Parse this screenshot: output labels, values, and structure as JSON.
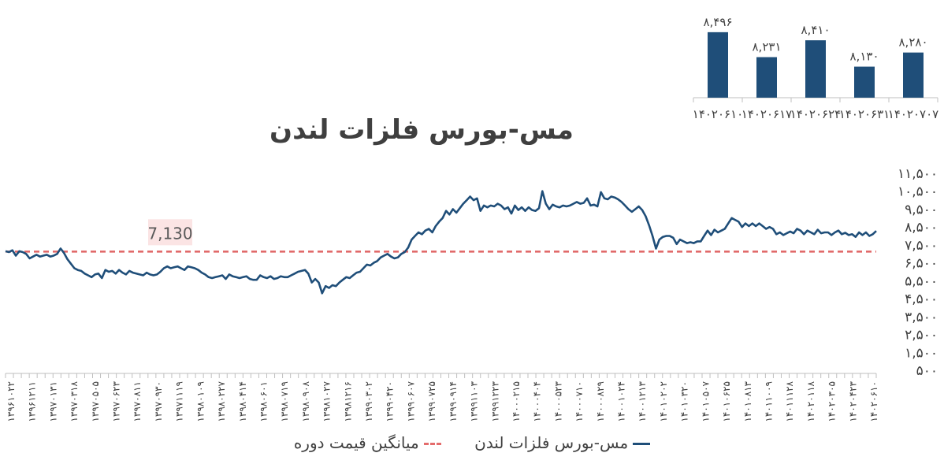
{
  "colors": {
    "series": "#1f4e79",
    "average": "#e06666",
    "avg_label_bg": "#fbe4e4",
    "bars": "#1f4e79",
    "axis": "#bfbfbf",
    "text": "#404040"
  },
  "chart_data": [
    {
      "type": "bar",
      "categories": [
        "۱۴۰۲۰۶۱۰",
        "۱۴۰۲۰۶۱۷",
        "۱۴۰۲۰۶۲۴",
        "۱۴۰۲۰۶۳۱",
        "۱۴۰۲۰۷۰۷"
      ],
      "values": [
        8496,
        8231,
        8410,
        8130,
        8280
      ],
      "value_labels": [
        "۸,۴۹۶",
        "۸,۲۳۱",
        "۸,۴۱۰",
        "۸,۱۳۰",
        "۸,۲۸۰"
      ],
      "ylim": [
        7800,
        8520
      ]
    },
    {
      "type": "line",
      "title": "مس-بورس فلزات لندن",
      "ylim": [
        500,
        11500
      ],
      "y_ticks": [
        "۵۰۰",
        "۱,۵۰۰",
        "۲,۵۰۰",
        "۳,۵۰۰",
        "۴,۵۰۰",
        "۵,۵۰۰",
        "۶,۵۰۰",
        "۷,۵۰۰",
        "۸,۵۰۰",
        "۹,۵۰۰",
        "۱۰,۵۰۰",
        "۱۱,۵۰۰"
      ],
      "x_ticks": [
        "۱۳۹۶۱۰۲۲",
        "۱۳۹۶۱۲۱۱",
        "۱۳۹۷۰۱۳۱",
        "۱۳۹۷۰۳۱۸",
        "۱۳۹۷۰۵۰۵",
        "۱۳۹۷۰۶۲۳",
        "۱۳۹۷۰۸۱۱",
        "۱۳۹۷۰۹۳۰",
        "۱۳۹۷۱۱۱۹",
        "۱۳۹۸۰۱۰۹",
        "۱۳۹۸۰۲۲۷",
        "۱۳۹۸۰۴۱۴",
        "۱۳۹۸۰۶۰۱",
        "۱۳۹۸۰۷۱۹",
        "۱۳۹۸۰۹۰۸",
        "۱۳۹۸۱۰۲۷",
        "۱۳۹۸۱۲۱۶",
        "۱۳۹۹۰۳۰۲",
        "۱۳۹۹۰۴۲۰",
        "۱۳۹۹۰۶۰۷",
        "۱۳۹۹۰۷۲۵",
        "۱۳۹۹۰۹۱۴",
        "۱۳۹۹۱۱۰۳",
        "۱۳۹۹۱۲۲۳",
        "۱۴۰۰۰۲۱۵",
        "۱۴۰۰۰۴۰۴",
        "۱۴۰۰۰۵۲۳",
        "۱۴۰۰۰۷۱۰",
        "۱۴۰۰۰۸۲۹",
        "۱۴۰۰۱۰۲۴",
        "۱۴۰۰۱۲۱۳",
        "۱۴۰۱۰۲۰۲",
        "۱۴۰۱۰۳۲۰",
        "۱۴۰۱۰۵۰۷",
        "۱۴۰۱۰۶۲۵",
        "۱۴۰۱۰۸۱۳",
        "۱۴۰۱۱۰۰۹",
        "۱۴۰۱۱۱۲۸",
        "۱۴۰۲۰۱۱۸",
        "۱۴۰۲۰۳۰۵",
        "۱۴۰۲۰۴۲۳",
        "۱۴۰۲۰۶۱۰"
      ],
      "series": [
        {
          "name": "مس-بورس فلزات لندن",
          "values": [
            7150,
            7100,
            7200,
            6900,
            7150,
            7100,
            7000,
            6750,
            6850,
            6950,
            6850,
            6900,
            6950,
            6850,
            6900,
            7000,
            7300,
            7050,
            6700,
            6450,
            6200,
            6100,
            6050,
            5900,
            5800,
            5700,
            5850,
            5900,
            5650,
            6100,
            6000,
            6050,
            5900,
            6100,
            5950,
            5850,
            6050,
            5950,
            5900,
            5850,
            5800,
            5950,
            5850,
            5800,
            5850,
            6000,
            6200,
            6300,
            6200,
            6250,
            6300,
            6200,
            6100,
            6300,
            6250,
            6200,
            6100,
            5950,
            5850,
            5700,
            5650,
            5700,
            5750,
            5800,
            5600,
            5850,
            5750,
            5700,
            5650,
            5700,
            5750,
            5600,
            5550,
            5550,
            5800,
            5700,
            5650,
            5750,
            5600,
            5650,
            5750,
            5700,
            5700,
            5800,
            5900,
            6000,
            6050,
            6100,
            5900,
            5400,
            5600,
            5400,
            4800,
            5200,
            5100,
            5250,
            5200,
            5400,
            5550,
            5700,
            5650,
            5800,
            5950,
            6000,
            6200,
            6400,
            6350,
            6500,
            6600,
            6800,
            6900,
            7000,
            6850,
            6750,
            6800,
            7000,
            7100,
            7350,
            7800,
            8000,
            8200,
            8100,
            8300,
            8400,
            8200,
            8550,
            8800,
            9000,
            9400,
            9200,
            9500,
            9300,
            9550,
            9800,
            10000,
            10200,
            10000,
            10100,
            9400,
            9700,
            9600,
            9700,
            9650,
            9800,
            9700,
            9500,
            9600,
            9250,
            9700,
            9450,
            9600,
            9400,
            9600,
            9450,
            9400,
            9550,
            10500,
            9800,
            9500,
            9750,
            9650,
            9600,
            9700,
            9650,
            9700,
            9800,
            9900,
            9800,
            9850,
            10100,
            9700,
            9750,
            9650,
            10450,
            10100,
            10050,
            10200,
            10150,
            10050,
            9900,
            9700,
            9500,
            9350,
            9500,
            9650,
            9450,
            9100,
            8600,
            8000,
            7300,
            7800,
            7950,
            8000,
            8000,
            7900,
            7550,
            7800,
            7700,
            7600,
            7650,
            7600,
            7700,
            7700,
            8000,
            8300,
            8050,
            8350,
            8200,
            8300,
            8400,
            8700,
            9000,
            8900,
            8800,
            8500,
            8700,
            8550,
            8700,
            8550,
            8700,
            8550,
            8400,
            8500,
            8400,
            8100,
            8200,
            8050,
            8150,
            8250,
            8150,
            8400,
            8300,
            8100,
            8300,
            8200,
            8100,
            8350,
            8150,
            8200,
            8200,
            8050,
            8200,
            8300,
            8100,
            8180,
            8050,
            8100,
            7950,
            8200,
            8050,
            8200,
            8000,
            8100,
            8280
          ]
        },
        {
          "name": "میانگین قیمت دوره",
          "value": 7130
        }
      ],
      "avg_label": "7,130"
    }
  ],
  "legend": {
    "series_label": "مس-بورس فلزات لندن",
    "average_label": "میانگین قیمت دوره"
  }
}
